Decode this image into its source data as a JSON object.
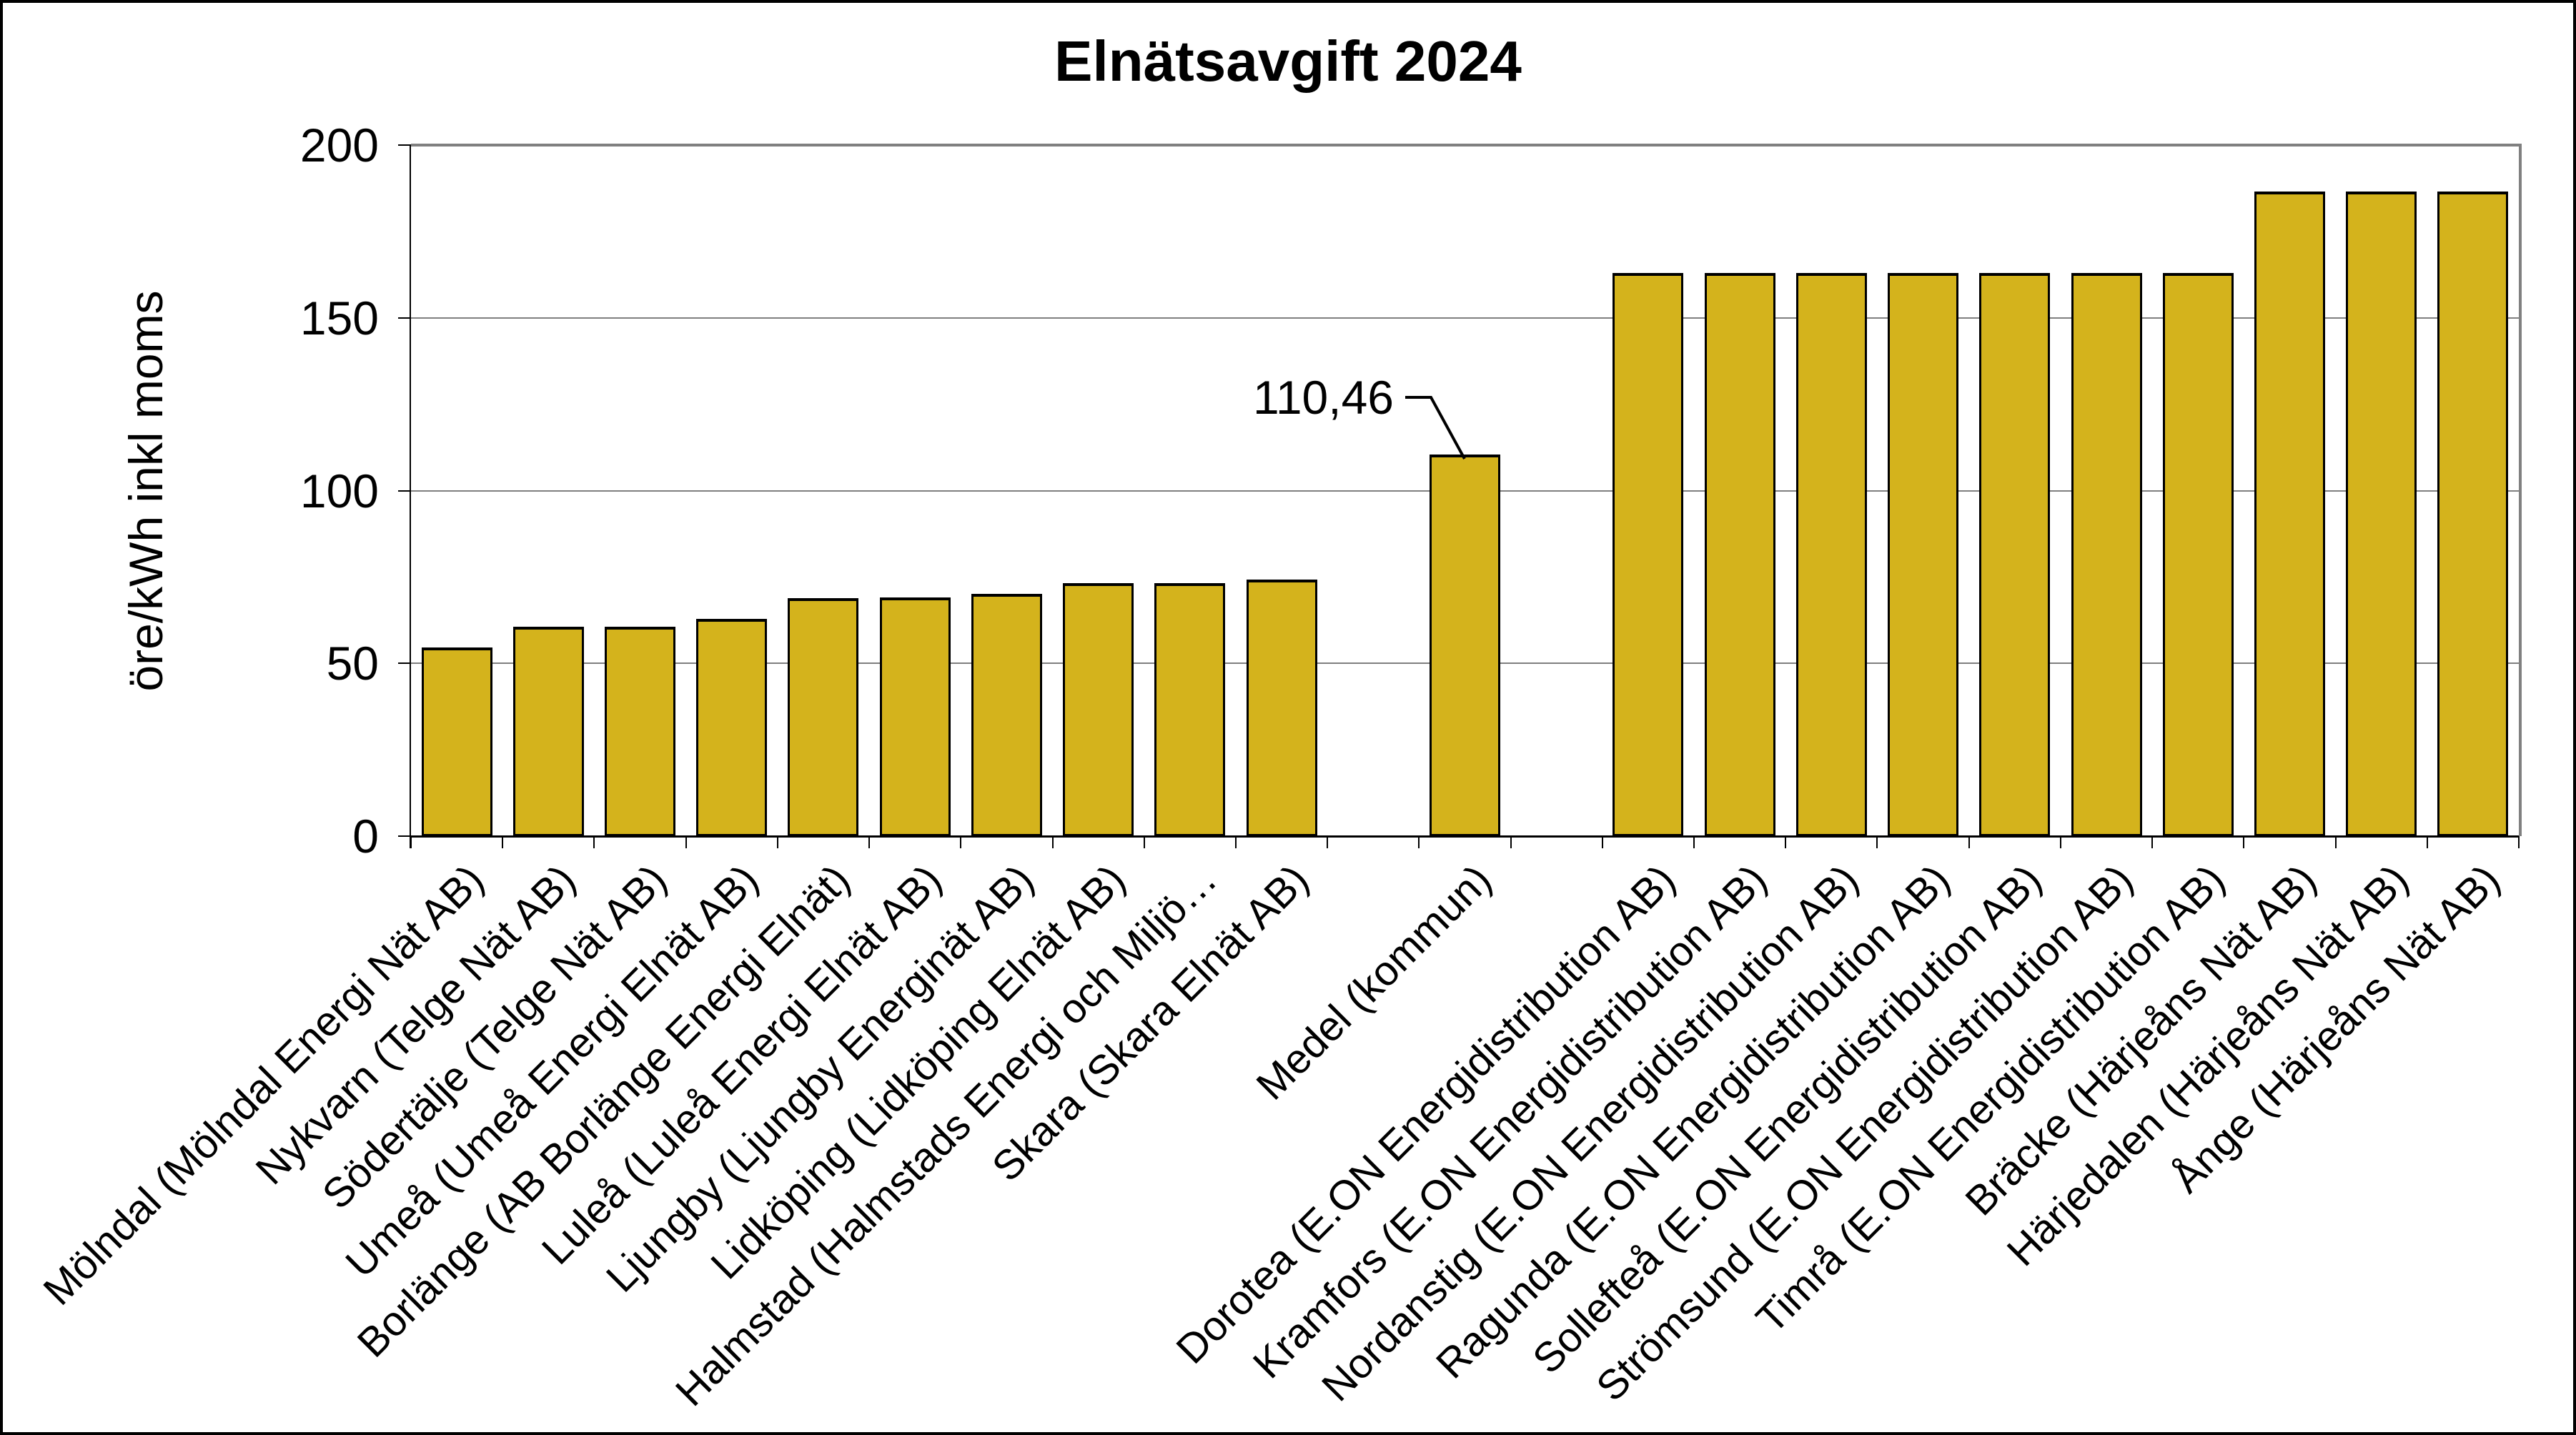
{
  "title": "Elnätsavgift 2024",
  "y_axis_title": "öre/kWh inkl moms",
  "annotation": {
    "text": "110,46",
    "value": 110.46,
    "category": "Medel (kommun)"
  },
  "colors": {
    "bar_fill": "#d4b31c",
    "bar_border": "#000000",
    "gridline": "#7f7f7f",
    "plot_border": "#808080",
    "axis": "#000000",
    "background": "#ffffff",
    "text": "#000000"
  },
  "chart_data": {
    "type": "bar",
    "title": "Elnätsavgift 2024",
    "xlabel": "",
    "ylabel": "öre/kWh inkl moms",
    "ylim": [
      0,
      200
    ],
    "yticks": [
      0,
      50,
      100,
      150,
      200
    ],
    "grid": true,
    "legend": false,
    "categories": [
      "Mölndal (Mölndal Energi Nät AB)",
      "Nykvarn (Telge Nät AB)",
      "Södertälje (Telge Nät AB)",
      "Umeå (Umeå Energi Elnät AB)",
      "Borlänge (AB Borlänge Energi Elnät)",
      "Luleå (Luleå Energi Elnät AB)",
      "Ljungby (Ljungby Energinät AB)",
      "Lidköping (Lidköping Elnät AB)",
      "Halmstad (Halmstads Energi och Miljö…",
      "Skara (Skara Elnät AB)",
      "Medel (kommun)",
      "Dorotea (E.ON Energidistribution AB)",
      "Kramfors (E.ON Energidistribution AB)",
      "Nordanstig (E.ON Energidistribution AB)",
      "Ragunda (E.ON Energidistribution AB)",
      "Sollefteå (E.ON Energidistribution AB)",
      "Strömsund (E.ON Energidistribution AB)",
      "Timrå (E.ON Energidistribution AB)",
      "Bräcke (Härjeåns Nät AB)",
      "Härjedalen (Härjeåns Nät AB)",
      "Ånge (Härjeåns Nät AB)"
    ],
    "values": [
      54.7,
      60.7,
      60.7,
      62.9,
      68.9,
      69.1,
      70.1,
      73.2,
      73.2,
      74.3,
      110.46,
      163.0,
      163.0,
      163.0,
      163.0,
      163.0,
      163.0,
      163.0,
      186.6,
      186.6,
      186.6
    ],
    "category_slots": [
      0,
      1,
      2,
      3,
      4,
      5,
      6,
      7,
      8,
      9,
      11,
      13,
      14,
      15,
      16,
      17,
      18,
      19,
      20,
      21,
      22
    ],
    "total_slots": 23,
    "data_label": {
      "category_index": 10,
      "text": "110,46"
    }
  }
}
